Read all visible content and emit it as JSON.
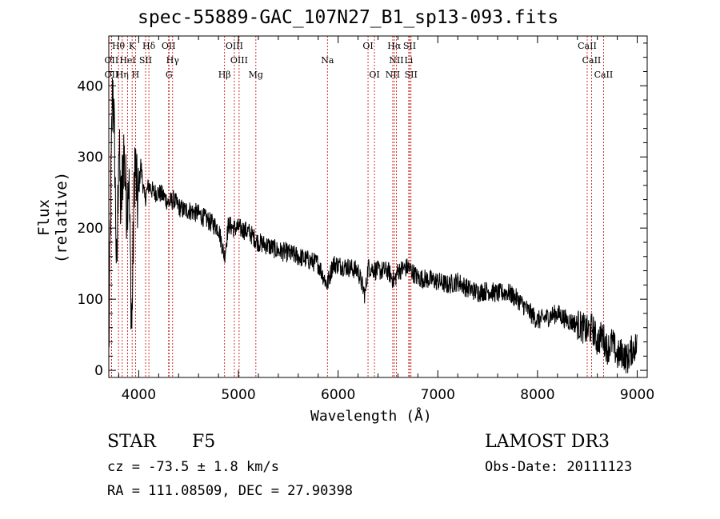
{
  "chart_data": {
    "type": "line",
    "title": "spec-55889-GAC_107N27_B1_sp13-093.fits",
    "xlabel": "Wavelength (Å)",
    "ylabel": "Flux (relative)",
    "xlim": [
      3700,
      9100
    ],
    "ylim": [
      -10,
      470
    ],
    "xticks": [
      4000,
      5000,
      6000,
      7000,
      8000,
      9000
    ],
    "yticks": [
      0,
      100,
      200,
      300,
      400
    ],
    "series": [
      {
        "name": "flux",
        "anchors_x": [
          3700,
          3720,
          3740,
          3760,
          3780,
          3800,
          3820,
          3850,
          3880,
          3900,
          3930,
          3960,
          3990,
          4020,
          4060,
          4100,
          4150,
          4200,
          4250,
          4300,
          4350,
          4400,
          4450,
          4500,
          4600,
          4700,
          4800,
          4860,
          4900,
          4950,
          5000,
          5100,
          5200,
          5300,
          5400,
          5500,
          5600,
          5700,
          5800,
          5890,
          5950,
          6000,
          6100,
          6200,
          6270,
          6300,
          6400,
          6500,
          6563,
          6600,
          6700,
          6800,
          6900,
          7000,
          7100,
          7200,
          7300,
          7400,
          7500,
          7600,
          7700,
          7800,
          7900,
          8000,
          8100,
          8200,
          8300,
          8400,
          8500,
          8550,
          8600,
          8650,
          8700,
          8750,
          8800,
          8850,
          8900,
          8950,
          9000
        ],
        "anchors_y": [
          20,
          250,
          410,
          300,
          120,
          330,
          220,
          310,
          230,
          280,
          50,
          300,
          230,
          290,
          240,
          260,
          250,
          250,
          245,
          235,
          240,
          230,
          225,
          225,
          220,
          210,
          200,
          160,
          205,
          200,
          200,
          195,
          180,
          175,
          168,
          165,
          160,
          155,
          150,
          120,
          150,
          148,
          145,
          140,
          105,
          145,
          140,
          140,
          125,
          140,
          145,
          130,
          128,
          125,
          120,
          125,
          115,
          110,
          112,
          108,
          110,
          100,
          85,
          70,
          75,
          80,
          70,
          65,
          55,
          60,
          40,
          50,
          30,
          40,
          20,
          25,
          15,
          30,
          35
        ],
        "noise_amplitude": 14,
        "sample_step": 3
      }
    ],
    "lines": [
      {
        "label": "Hθ",
        "x": 3797,
        "row": 0
      },
      {
        "label": "K",
        "x": 3934,
        "row": 0
      },
      {
        "label": "Hδ",
        "x": 4102,
        "row": 0
      },
      {
        "label": "OII",
        "x": 4300,
        "row": 0
      },
      {
        "label": "OIII",
        "x": 4959,
        "row": 0
      },
      {
        "label": "OI",
        "x": 6300,
        "row": 0
      },
      {
        "label": "Hα",
        "x": 6563,
        "row": 0
      },
      {
        "label": "SII",
        "x": 6717,
        "row": 0
      },
      {
        "label": "CaII",
        "x": 8498,
        "row": 0
      },
      {
        "label": "OII",
        "x": 3727,
        "row": 1
      },
      {
        "label": "HeI",
        "x": 3889,
        "row": 1
      },
      {
        "label": "SII",
        "x": 4069,
        "row": 1
      },
      {
        "label": "Hγ",
        "x": 4340,
        "row": 1
      },
      {
        "label": "OIII",
        "x": 5007,
        "row": 1
      },
      {
        "label": "Na",
        "x": 5893,
        "row": 1
      },
      {
        "label": "NII",
        "x": 6584,
        "row": 1
      },
      {
        "label": "Li",
        "x": 6708,
        "row": 1
      },
      {
        "label": "CaII",
        "x": 8542,
        "row": 1
      },
      {
        "label": "OII",
        "x": 3727,
        "row": 2
      },
      {
        "label": "Hη",
        "x": 3835,
        "row": 2
      },
      {
        "label": "H",
        "x": 3968,
        "row": 2
      },
      {
        "label": "G",
        "x": 4304,
        "row": 2
      },
      {
        "label": "Hβ",
        "x": 4861,
        "row": 2
      },
      {
        "label": "Mg",
        "x": 5175,
        "row": 2
      },
      {
        "label": "OI",
        "x": 6364,
        "row": 2
      },
      {
        "label": "NII",
        "x": 6548,
        "row": 2
      },
      {
        "label": "SII",
        "x": 6731,
        "row": 2
      },
      {
        "label": "CaII",
        "x": 8662,
        "row": 2
      }
    ]
  },
  "info": {
    "object_class": "STAR",
    "subclass": "F5",
    "survey": "LAMOST DR3",
    "redshift_text": "cz = -73.5 ± 1.8 km/s",
    "obs_date": "Obs-Date: 20111123",
    "coords": "RA = 111.08509, DEC =  27.90398"
  }
}
